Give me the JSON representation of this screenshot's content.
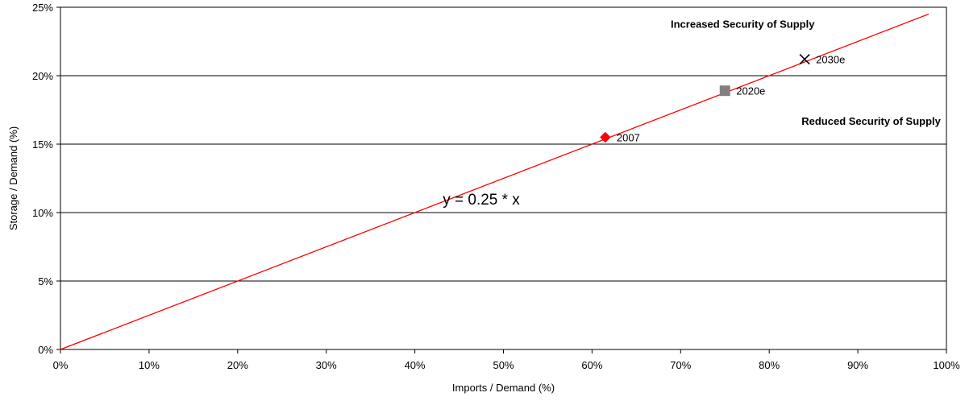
{
  "chart_data": {
    "type": "scatter",
    "title": "",
    "xlabel": "Imports / Demand (%)",
    "ylabel": "Storage / Demand (%)",
    "xlim": [
      0,
      100
    ],
    "ylim": [
      0,
      25
    ],
    "x_ticks": [
      0,
      10,
      20,
      30,
      40,
      50,
      60,
      70,
      80,
      90,
      100
    ],
    "y_ticks": [
      0,
      5,
      10,
      15,
      20,
      25
    ],
    "x_tick_labels": [
      "0%",
      "10%",
      "20%",
      "30%",
      "40%",
      "50%",
      "60%",
      "70%",
      "80%",
      "90%",
      "100%"
    ],
    "y_tick_labels": [
      "0%",
      "5%",
      "10%",
      "15%",
      "20%",
      "25%"
    ],
    "grid": "horizontal",
    "line": {
      "equation": "y = 0.25 * x",
      "slope": 0.25,
      "x_start": 0,
      "x_end": 98,
      "color": "#ff0000"
    },
    "points": [
      {
        "label": "2007",
        "x": 61.5,
        "y": 15.5,
        "marker": "diamond",
        "color": "#ff0000"
      },
      {
        "label": "2020e",
        "x": 75,
        "y": 18.9,
        "marker": "square",
        "color": "#808080"
      },
      {
        "label": "2030e",
        "x": 84,
        "y": 21.2,
        "marker": "x",
        "color": "#000000"
      }
    ],
    "annotations": [
      {
        "text": "Increased Security of Supply",
        "x": 77,
        "y": 23.8
      },
      {
        "text": "Reduced Security of Supply",
        "x": 91.5,
        "y": 16.7
      }
    ],
    "equation_label": {
      "text": "y = 0.25 * x",
      "x": 47.5,
      "y": 11
    }
  },
  "colors": {
    "grid": "#000000",
    "axis": "#000000",
    "plot_background": "#ffffff"
  }
}
